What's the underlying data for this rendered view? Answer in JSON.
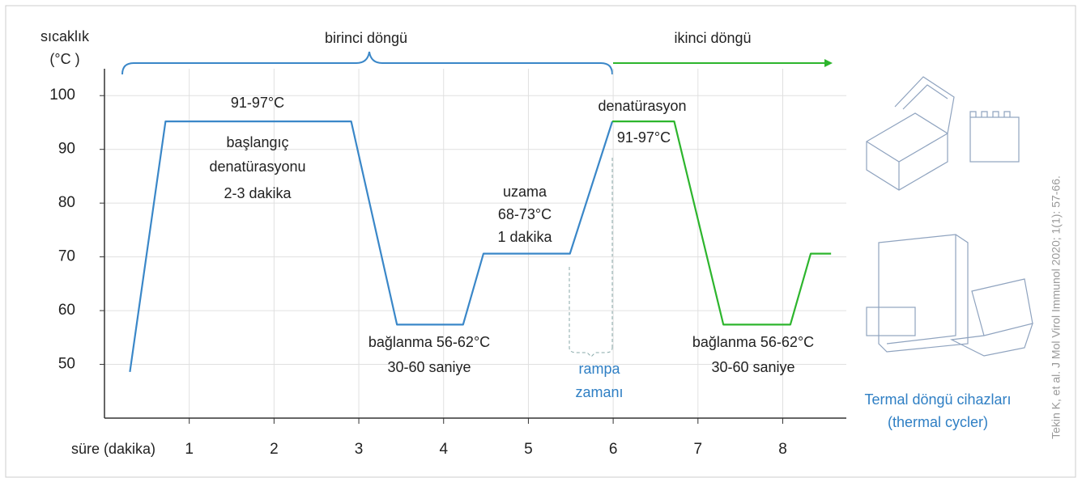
{
  "chart_data": {
    "type": "line",
    "y_label": [
      "sıcaklık",
      "(°C )"
    ],
    "x_label": "süre (dakika)",
    "cycle_labels": [
      "birinci döngü",
      "ikinci döngü"
    ],
    "xlim": [
      0,
      8.75
    ],
    "xticks": [
      1,
      2,
      3,
      4,
      5,
      6,
      7,
      8
    ],
    "ylim": [
      40,
      105
    ],
    "yticks": [
      50,
      60,
      70,
      80,
      90,
      100
    ],
    "grid": true,
    "series": [
      {
        "color": "#3a87c8",
        "x": [
          0.3,
          0.72,
          2.91,
          3.45,
          4.23,
          4.47,
          5.49,
          5.99
        ],
        "values": [
          48.6,
          95.2,
          95.2,
          57.4,
          57.4,
          70.6,
          70.6,
          95.2
        ]
      },
      {
        "color": "#2db52d",
        "x": [
          5.99,
          6.72,
          7.3,
          8.09,
          8.33,
          8.57
        ],
        "values": [
          95.2,
          95.2,
          57.4,
          57.4,
          70.6,
          70.6
        ]
      }
    ],
    "annotations": [
      "91-97°C",
      "başlangıç",
      "denatürasyonu",
      "2-3 dakika",
      "uzama",
      "68-73°C",
      "1 dakika",
      "denatürasyon",
      "91-97°C",
      "bağlanma 56-62°C",
      "30-60 saniye",
      "rampa",
      "zamanı",
      "bağlanma 56-62°C",
      "30-60 saniye"
    ],
    "device_label": [
      "Termal döngü cihazları",
      "(thermal cycler)"
    ],
    "citation": "Tekin K, et al. J Mol Virol Immunol 2020; 1(1): 57-66."
  }
}
